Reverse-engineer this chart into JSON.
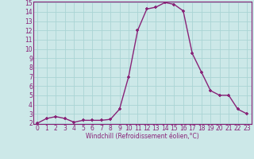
{
  "x": [
    0,
    1,
    2,
    3,
    4,
    5,
    6,
    7,
    8,
    9,
    10,
    11,
    12,
    13,
    14,
    15,
    16,
    17,
    18,
    19,
    20,
    21,
    22,
    23
  ],
  "y": [
    2.0,
    2.5,
    2.7,
    2.5,
    2.1,
    2.3,
    2.3,
    2.3,
    2.4,
    3.5,
    7.0,
    12.0,
    14.3,
    14.5,
    15.0,
    14.8,
    14.1,
    9.5,
    7.5,
    5.5,
    5.0,
    5.0,
    3.5,
    3.0
  ],
  "line_color": "#882277",
  "marker": "+",
  "marker_size": 3.5,
  "marker_lw": 1.2,
  "bg_color": "#cce8e8",
  "grid_color": "#aad4d4",
  "xlabel": "Windchill (Refroidissement éolien,°C)",
  "xlabel_color": "#882277",
  "tick_color": "#882277",
  "ylim": [
    2,
    15
  ],
  "xlim": [
    -0.5,
    23.5
  ],
  "yticks": [
    2,
    3,
    4,
    5,
    6,
    7,
    8,
    9,
    10,
    11,
    12,
    13,
    14,
    15
  ],
  "xticks": [
    0,
    1,
    2,
    3,
    4,
    5,
    6,
    7,
    8,
    9,
    10,
    11,
    12,
    13,
    14,
    15,
    16,
    17,
    18,
    19,
    20,
    21,
    22,
    23
  ],
  "spine_color": "#882277",
  "line_width": 1.0,
  "tick_fontsize": 5.5,
  "xlabel_fontsize": 5.5
}
